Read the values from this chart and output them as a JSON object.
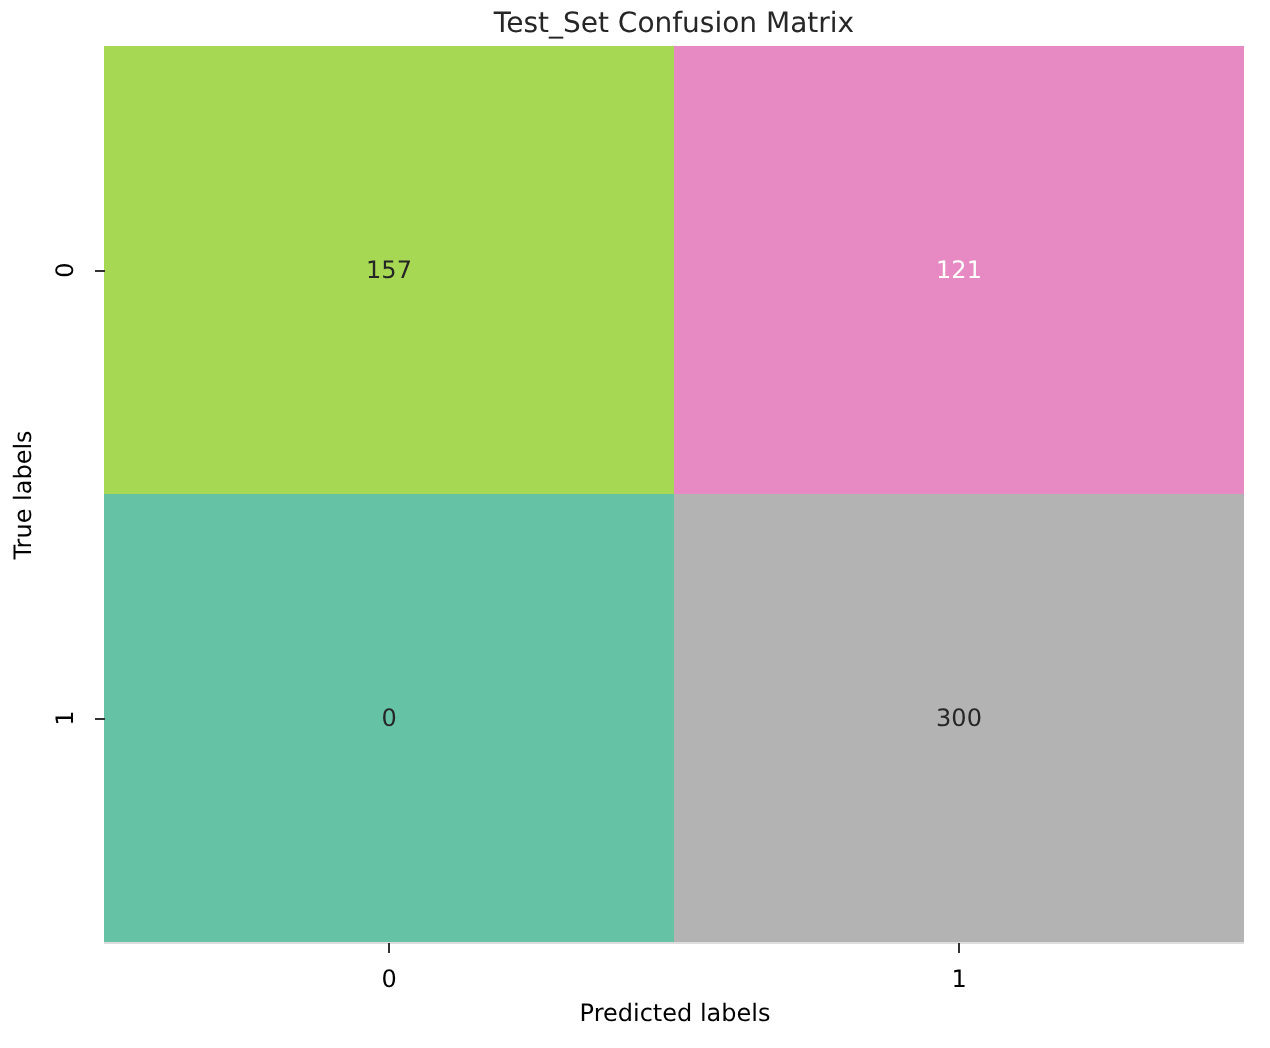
{
  "chart_data": {
    "type": "heatmap",
    "title": "Test_Set Confusion Matrix",
    "xlabel": "Predicted labels",
    "ylabel": "True labels",
    "categories": [
      "0",
      "1"
    ],
    "y_categories": [
      "0",
      "1"
    ],
    "cells": [
      [
        157,
        121
      ],
      [
        0,
        300
      ]
    ],
    "colors": [
      "#a6d854",
      "#e78ac3",
      "#66c2a5",
      "#b3b3b3"
    ],
    "data_labels": true,
    "grid": false,
    "legend": false
  }
}
